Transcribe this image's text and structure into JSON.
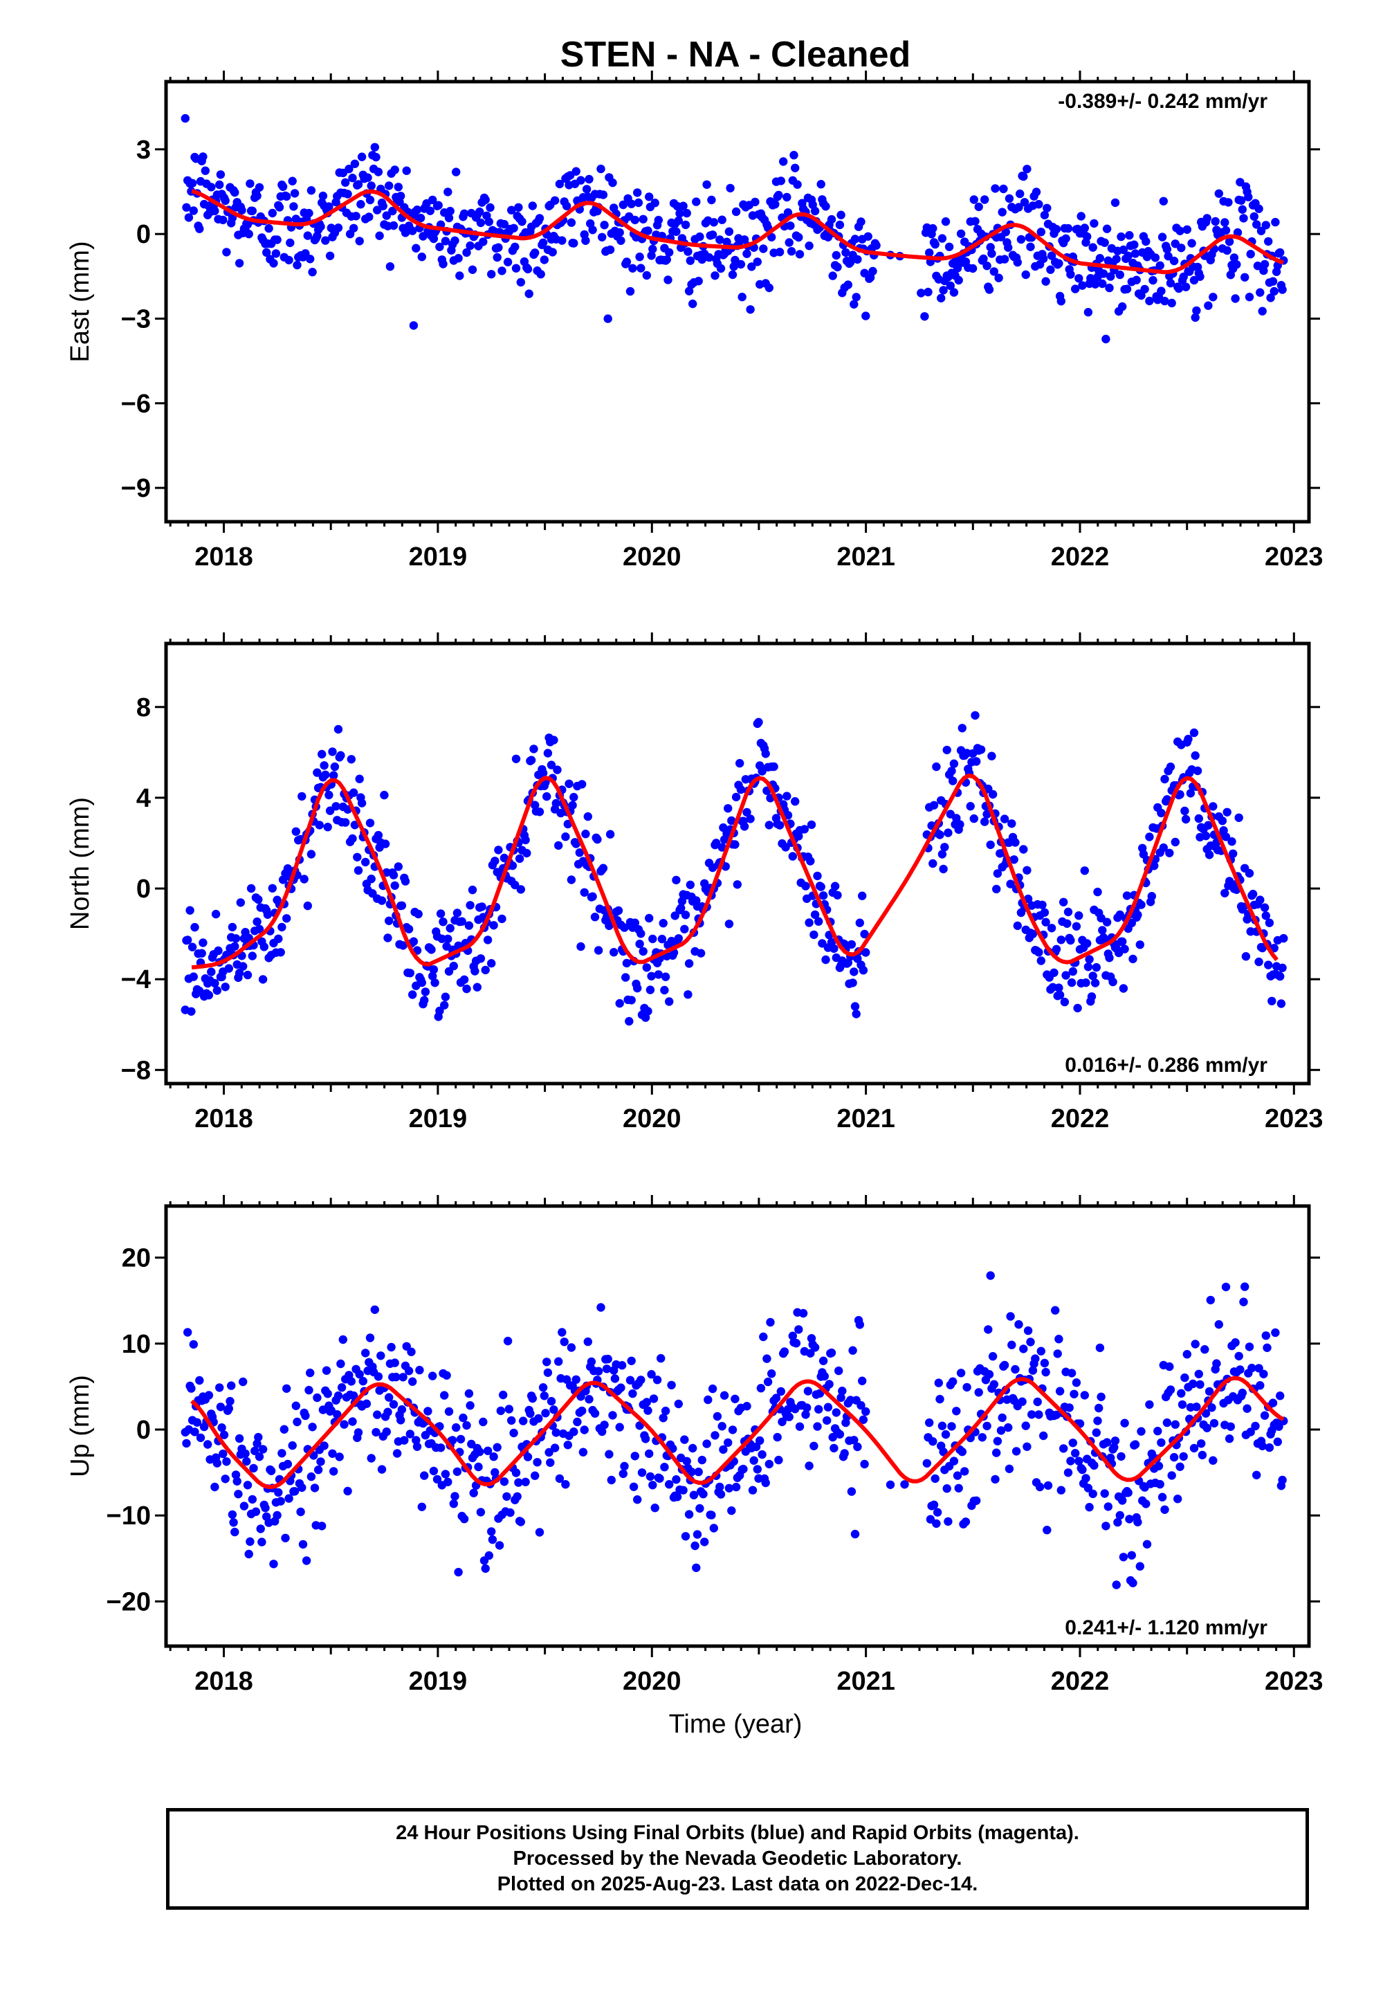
{
  "title": "STEN  - NA - Cleaned",
  "xlabel": "Time (year)",
  "colors": {
    "final_orbits": "#0000ff",
    "rapid_orbits": "#ff00ff",
    "model": "#ff0000",
    "frame": "#000000"
  },
  "footer": {
    "line1": "24 Hour Positions Using Final Orbits (blue) and Rapid Orbits (magenta).",
    "line2": "Processed by the Nevada Geodetic Laboratory.",
    "line3": "Plotted on 2025-Aug-23. Last data on 2022-Dec-14."
  },
  "chart_data": [
    {
      "type": "scatter",
      "ylabel": "East (mm)",
      "rate_label": "-0.389+/- 0.242 mm/yr",
      "rate_position": "top-right",
      "xlim": [
        2017.73,
        2023.07
      ],
      "ylim": [
        -10.2,
        5.4
      ],
      "xticks": [
        2018,
        2019,
        2020,
        2021,
        2022,
        2023
      ],
      "yticks": [
        3,
        0,
        -3,
        -6,
        -9
      ],
      "trend_mm_per_yr": -0.389,
      "seasonal_amplitude_mm": 0.6,
      "noise_sd_mm": 0.9,
      "gap": [
        2021.05,
        2021.27
      ],
      "model_x": [
        2017.85,
        2018.1,
        2018.4,
        2018.7,
        2018.9,
        2019.2,
        2019.45,
        2019.7,
        2019.95,
        2020.2,
        2020.45,
        2020.7,
        2020.95,
        2021.2,
        2021.4,
        2021.7,
        2021.95,
        2022.2,
        2022.45,
        2022.7,
        2022.95
      ],
      "model_y": [
        1.6,
        0.5,
        0.3,
        1.7,
        0.3,
        0.0,
        -0.2,
        1.3,
        -0.1,
        -0.4,
        -0.5,
        0.9,
        -0.6,
        -0.8,
        -0.9,
        0.5,
        -1.0,
        -1.2,
        -1.4,
        0.1,
        -1.1
      ]
    },
    {
      "type": "scatter",
      "ylabel": "North (mm)",
      "rate_label": "0.016+/- 0.286 mm/yr",
      "rate_position": "bottom-right",
      "xlim": [
        2017.73,
        2023.07
      ],
      "ylim": [
        -8.6,
        10.8
      ],
      "xticks": [
        2018,
        2019,
        2020,
        2021,
        2022,
        2023
      ],
      "yticks": [
        8,
        4,
        0,
        -4,
        -8
      ],
      "trend_mm_per_yr": 0.016,
      "seasonal_amplitude_mm": 4.6,
      "noise_sd_mm": 1.2,
      "gap": [
        2021.0,
        2021.28
      ],
      "model_x": [
        2017.85,
        2018.0,
        2018.25,
        2018.5,
        2018.75,
        2018.9,
        2019.2,
        2019.5,
        2019.75,
        2019.9,
        2020.2,
        2020.5,
        2020.75,
        2020.92,
        2021.2,
        2021.5,
        2021.75,
        2021.9,
        2022.2,
        2022.5,
        2022.75,
        2022.92
      ],
      "model_y": [
        -3.5,
        -3.3,
        -1.5,
        5.6,
        0.5,
        -3.6,
        -2.3,
        5.7,
        0.3,
        -3.5,
        -2.2,
        5.7,
        0.1,
        -3.5,
        0.5,
        5.7,
        -1.0,
        -3.5,
        -2.1,
        5.7,
        0.0,
        -3.5
      ]
    },
    {
      "type": "scatter",
      "ylabel": "Up (mm)",
      "rate_label": "0.241+/- 1.120 mm/yr",
      "rate_position": "bottom-right",
      "xlim": [
        2017.73,
        2023.07
      ],
      "ylim": [
        -25.2,
        26.0
      ],
      "xticks": [
        2018,
        2019,
        2020,
        2021,
        2022,
        2023
      ],
      "yticks": [
        20,
        10,
        0,
        -10,
        -20
      ],
      "trend_mm_per_yr": 0.241,
      "seasonal_amplitude_mm": 7.0,
      "noise_sd_mm": 4.8,
      "gap": [
        2021.0,
        2021.28
      ],
      "model_x": [
        2017.85,
        2018.0,
        2018.22,
        2018.5,
        2018.72,
        2019.0,
        2019.22,
        2019.5,
        2019.72,
        2020.0,
        2020.22,
        2020.5,
        2020.72,
        2021.0,
        2021.22,
        2021.5,
        2021.72,
        2022.0,
        2022.22,
        2022.5,
        2022.72,
        2022.95
      ],
      "model_y": [
        4.0,
        -2.0,
        -7.6,
        0.0,
        6.1,
        0.0,
        -7.4,
        0.0,
        6.3,
        0.0,
        -7.2,
        0.0,
        6.5,
        0.0,
        -7.0,
        0.0,
        6.8,
        0.0,
        -6.8,
        0.0,
        7.0,
        0.7
      ]
    }
  ]
}
